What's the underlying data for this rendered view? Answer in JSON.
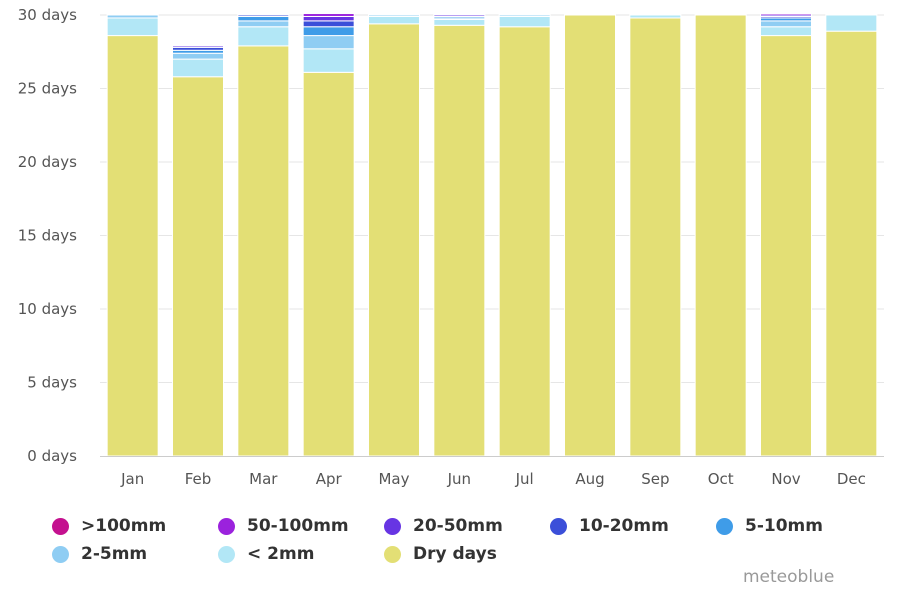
{
  "chart_data": {
    "type": "bar",
    "stacked": true,
    "categories": [
      "Jan",
      "Feb",
      "Mar",
      "Apr",
      "May",
      "Jun",
      "Jul",
      "Aug",
      "Sep",
      "Oct",
      "Nov",
      "Dec"
    ],
    "y_ticks": [
      "0 days",
      "5 days",
      "10 days",
      "15 days",
      "20 days",
      "25 days",
      "30 days"
    ],
    "ylim": [
      0,
      30
    ],
    "grid": true,
    "legend_position": "bottom",
    "series": [
      {
        "name": "Dry days",
        "color": "#e3df75",
        "values": [
          28.6,
          25.8,
          27.9,
          26.1,
          29.4,
          29.3,
          29.2,
          30.0,
          29.8,
          30.0,
          28.6,
          28.9
        ]
      },
      {
        "name": "< 2mm",
        "color": "#b2e7f6",
        "values": [
          1.2,
          1.2,
          1.3,
          1.6,
          0.5,
          0.4,
          0.7,
          0.0,
          0.2,
          0.0,
          0.6,
          1.1
        ]
      },
      {
        "name": "2-5mm",
        "color": "#8fcdf3",
        "values": [
          0.2,
          0.4,
          0.4,
          0.9,
          0.1,
          0.1,
          0.1,
          0.0,
          0.0,
          0.0,
          0.4,
          0.0
        ]
      },
      {
        "name": "5-10mm",
        "color": "#3f9ce8",
        "values": [
          0.0,
          0.2,
          0.3,
          0.6,
          0.0,
          0.1,
          0.0,
          0.0,
          0.0,
          0.0,
          0.2,
          0.0
        ]
      },
      {
        "name": "10-20mm",
        "color": "#3b4fd9",
        "values": [
          0.0,
          0.2,
          0.1,
          0.4,
          0.0,
          0.0,
          0.0,
          0.0,
          0.0,
          0.0,
          0.1,
          0.0
        ]
      },
      {
        "name": "20-50mm",
        "color": "#6735e3",
        "values": [
          0.0,
          0.1,
          0.0,
          0.3,
          0.0,
          0.1,
          0.0,
          0.0,
          0.0,
          0.0,
          0.1,
          0.0
        ]
      },
      {
        "name": "50-100mm",
        "color": "#9b22dd",
        "values": [
          0.0,
          0.0,
          0.0,
          0.2,
          0.0,
          0.0,
          0.0,
          0.0,
          0.0,
          0.0,
          0.1,
          0.0
        ]
      },
      {
        "name": ">100mm",
        "color": "#c4118f",
        "values": [
          0.0,
          0.0,
          0.0,
          0.0,
          0.0,
          0.0,
          0.0,
          0.0,
          0.0,
          0.0,
          0.0,
          0.0
        ]
      }
    ]
  },
  "legend": [
    {
      "label": ">100mm",
      "color": "#c4118f"
    },
    {
      "label": "50-100mm",
      "color": "#9b22dd"
    },
    {
      "label": "20-50mm",
      "color": "#6735e3"
    },
    {
      "label": "10-20mm",
      "color": "#3b4fd9"
    },
    {
      "label": "5-10mm",
      "color": "#3f9ce8"
    },
    {
      "label": "2-5mm",
      "color": "#8fcdf3"
    },
    {
      "label": "< 2mm",
      "color": "#b2e7f6"
    },
    {
      "label": "Dry days",
      "color": "#e3df75"
    }
  ],
  "credit": "meteoblue"
}
